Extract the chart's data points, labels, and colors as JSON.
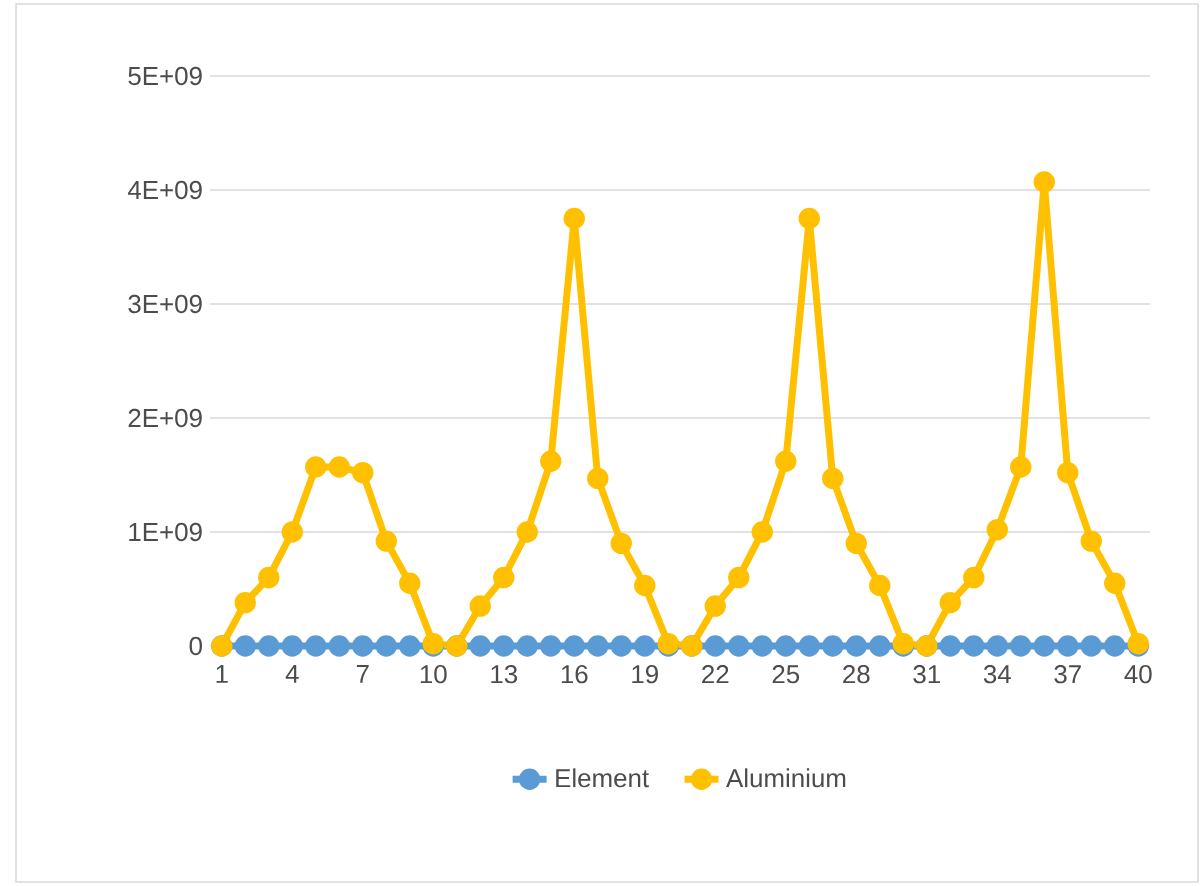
{
  "chart_data": {
    "type": "line",
    "categories": [
      "1",
      null,
      null,
      "4",
      null,
      null,
      "7",
      null,
      null,
      "10",
      null,
      null,
      "13",
      null,
      null,
      "16",
      null,
      null,
      "19",
      null,
      null,
      "22",
      null,
      null,
      "25",
      null,
      null,
      "28",
      null,
      null,
      "31",
      null,
      null,
      "34",
      null,
      null,
      "37",
      null,
      null,
      "40"
    ],
    "series": [
      {
        "name": "Element",
        "color": "#5b9bd5",
        "values": [
          0,
          0,
          0,
          0,
          0,
          0,
          0,
          0,
          0,
          0,
          0,
          0,
          0,
          0,
          0,
          0,
          0,
          0,
          0,
          0,
          0,
          0,
          0,
          0,
          0,
          0,
          0,
          0,
          0,
          0,
          0,
          0,
          0,
          0,
          0,
          0,
          0,
          0,
          0,
          0
        ]
      },
      {
        "name": "Aluminium",
        "color": "#ffc000",
        "values": [
          0,
          380000000,
          600000000,
          1000000000,
          1570000000,
          1570000000,
          1520000000,
          920000000,
          550000000,
          20000000,
          0,
          350000000,
          600000000,
          1000000000,
          1620000000,
          3750000000,
          1470000000,
          900000000,
          530000000,
          20000000,
          0,
          350000000,
          600000000,
          1000000000,
          1620000000,
          3750000000,
          1470000000,
          900000000,
          530000000,
          20000000,
          0,
          380000000,
          600000000,
          1020000000,
          1570000000,
          4070000000,
          1520000000,
          920000000,
          550000000,
          20000000
        ]
      }
    ],
    "ylim": [
      0,
      5000000000
    ],
    "yticks": [
      0,
      {
        "value": 1000000000,
        "label": "1E+09"
      },
      {
        "value": 2000000000,
        "label": "2E+09"
      },
      {
        "value": 3000000000,
        "label": "3E+09"
      },
      {
        "value": 4000000000,
        "label": "4E+09"
      },
      {
        "value": 5000000000,
        "label": "5E+09"
      }
    ],
    "grid": "y",
    "legend": "bottom",
    "marker": "circle",
    "line_style": "solid"
  }
}
